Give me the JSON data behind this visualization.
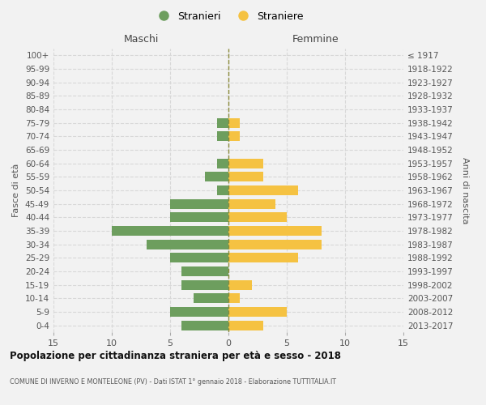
{
  "age_groups": [
    "0-4",
    "5-9",
    "10-14",
    "15-19",
    "20-24",
    "25-29",
    "30-34",
    "35-39",
    "40-44",
    "45-49",
    "50-54",
    "55-59",
    "60-64",
    "65-69",
    "70-74",
    "75-79",
    "80-84",
    "85-89",
    "90-94",
    "95-99",
    "100+"
  ],
  "birth_years": [
    "2013-2017",
    "2008-2012",
    "2003-2007",
    "1998-2002",
    "1993-1997",
    "1988-1992",
    "1983-1987",
    "1978-1982",
    "1973-1977",
    "1968-1972",
    "1963-1967",
    "1958-1962",
    "1953-1957",
    "1948-1952",
    "1943-1947",
    "1938-1942",
    "1933-1937",
    "1928-1932",
    "1923-1927",
    "1918-1922",
    "≤ 1917"
  ],
  "males": [
    4,
    5,
    3,
    4,
    4,
    5,
    7,
    10,
    5,
    5,
    1,
    2,
    1,
    0,
    1,
    1,
    0,
    0,
    0,
    0,
    0
  ],
  "females": [
    3,
    5,
    1,
    2,
    0,
    6,
    8,
    8,
    5,
    4,
    6,
    3,
    3,
    0,
    1,
    1,
    0,
    0,
    0,
    0,
    0
  ],
  "male_color": "#6d9e5e",
  "female_color": "#f5c242",
  "background_color": "#f2f2f2",
  "grid_color": "#d8d8d8",
  "title": "Popolazione per cittadinanza straniera per età e sesso - 2018",
  "subtitle": "COMUNE DI INVERNO E MONTELEONE (PV) - Dati ISTAT 1° gennaio 2018 - Elaborazione TUTTITALIA.IT",
  "legend_male": "Stranieri",
  "legend_female": "Straniere",
  "xlabel_left": "Maschi",
  "xlabel_right": "Femmine",
  "ylabel_left": "Fasce di età",
  "ylabel_right": "Anni di nascita",
  "xlim": 15,
  "center_line_color": "#8a8a3a"
}
